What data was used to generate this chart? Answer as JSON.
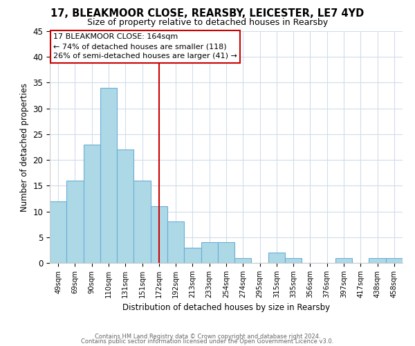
{
  "title1": "17, BLEAKMOOR CLOSE, REARSBY, LEICESTER, LE7 4YD",
  "title2": "Size of property relative to detached houses in Rearsby",
  "xlabel": "Distribution of detached houses by size in Rearsby",
  "ylabel": "Number of detached properties",
  "bar_color": "#add8e6",
  "bar_edge_color": "#6baed6",
  "categories": [
    "49sqm",
    "69sqm",
    "90sqm",
    "110sqm",
    "131sqm",
    "151sqm",
    "172sqm",
    "192sqm",
    "213sqm",
    "233sqm",
    "254sqm",
    "274sqm",
    "295sqm",
    "315sqm",
    "335sqm",
    "356sqm",
    "376sqm",
    "397sqm",
    "417sqm",
    "438sqm",
    "458sqm"
  ],
  "values": [
    12,
    16,
    23,
    34,
    22,
    16,
    11,
    8,
    3,
    4,
    4,
    1,
    0,
    2,
    1,
    0,
    0,
    1,
    0,
    1,
    1
  ],
  "vline_x": 6.0,
  "vline_color": "#cc0000",
  "annotation_title": "17 BLEAKMOOR CLOSE: 164sqm",
  "annotation_line1": "← 74% of detached houses are smaller (118)",
  "annotation_line2": "26% of semi-detached houses are larger (41) →",
  "ylim": [
    0,
    45
  ],
  "yticks": [
    0,
    5,
    10,
    15,
    20,
    25,
    30,
    35,
    40,
    45
  ],
  "bg_color": "#ffffff",
  "grid_color": "#d0dcea",
  "footer1": "Contains HM Land Registry data © Crown copyright and database right 2024.",
  "footer2": "Contains public sector information licensed under the Open Government Licence v3.0."
}
